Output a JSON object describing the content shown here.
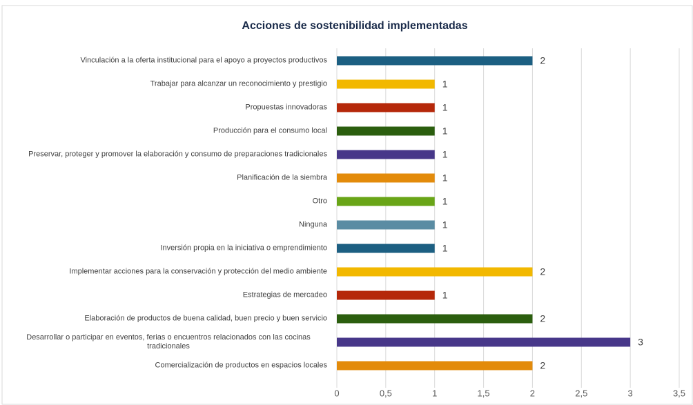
{
  "chart_data": {
    "type": "barh",
    "title": "Acciones de sostenibilidad implementadas",
    "categories": [
      "Vinculación a la oferta institucional para el apoyo a proyectos productivos",
      "Trabajar para alcanzar un reconocimiento y prestigio",
      "Propuestas innovadoras",
      "Producción para el consumo local",
      "Preservar, proteger y promover la elaboración y consumo de preparaciones tradicionales",
      "Planificación de la siembra",
      "Otro",
      "Ninguna",
      "Inversión propia en la iniciativa o emprendimiento",
      "Implementar acciones para la conservación y protección del medio ambiente",
      "Estrategias de mercadeo",
      "Elaboración de productos de buena calidad, buen precio y buen servicio",
      "Desarrollar o participar en eventos, ferias o encuentros relacionados con las cocinas tradicionales",
      "Comercialización de productos en espacios locales"
    ],
    "values": [
      2,
      1,
      1,
      1,
      1,
      1,
      1,
      1,
      1,
      2,
      1,
      2,
      3,
      2
    ],
    "colors": [
      "#1c5f82",
      "#f2b800",
      "#b5280a",
      "#2b5e0e",
      "#473789",
      "#e38b0b",
      "#69a517",
      "#5a8ca3",
      "#1c5f82",
      "#f2b800",
      "#b5280a",
      "#2b5e0e",
      "#473789",
      "#e38b0b"
    ],
    "xlim": [
      0,
      3.5
    ],
    "xticks": [
      0,
      {
        "value": 0.5,
        "label": "0,5"
      },
      1,
      {
        "value": 1.5,
        "label": "1,5"
      },
      2,
      {
        "value": 2.5,
        "label": "2,5"
      },
      3,
      {
        "value": 3.5,
        "label": "3,5"
      }
    ],
    "grid": true
  }
}
